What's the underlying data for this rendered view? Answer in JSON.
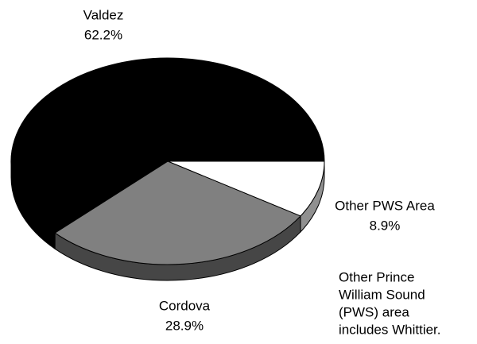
{
  "chart_data": {
    "type": "pie",
    "categories": [
      "Other PWS Area",
      "Cordova",
      "Valdez"
    ],
    "values": [
      8.9,
      28.9,
      62.2
    ],
    "value_labels": [
      "8.9%",
      "28.9%",
      "62.2%"
    ],
    "colors": [
      "#ffffff",
      "#808080",
      "#000000"
    ],
    "annotation": [
      "Other Prince",
      "William Sound",
      "(PWS) area",
      "includes Whittier."
    ]
  }
}
